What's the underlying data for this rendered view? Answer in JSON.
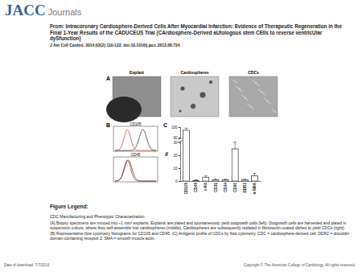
{
  "header": {
    "brand": "JACC",
    "brand_sub": "Journals",
    "title": "From: Intracoronary Cardiosphere-Derived Cells After Myocardial Infarction: Evidence of Therapeutic Regeneration in the Final 1-Year Results of the CADUCEUS Trial (CArdiosphere-Derived aUtologous stem CElls to reverse ventricUlar dySfunction)",
    "citation": "J Am Coll Cardiol. 2014;63(2):110-122. doi:10.1016/j.jacc.2013.08.724"
  },
  "figure": {
    "panels": [
      {
        "letter": "A",
        "images": [
          "Explant",
          "Cardiospheres",
          "CDCs"
        ]
      },
      {
        "letter": "B",
        "histograms": [
          "CD105",
          "CD45"
        ]
      },
      {
        "letter": "C"
      }
    ]
  },
  "chart_data": {
    "type": "bar",
    "categories": [
      "CD105",
      "CD45",
      "c-Kit",
      "CD31",
      "CD34",
      "CD90",
      "DDR2",
      "α-SMA"
    ],
    "values": [
      97,
      0.5,
      3,
      1,
      1,
      25,
      1,
      4
    ],
    "errors": [
      2,
      0.5,
      1,
      0.5,
      0.5,
      8,
      0.5,
      2
    ],
    "color": "#ffffff",
    "ylabel": "%",
    "ylim": [
      0,
      100
    ],
    "yticks": [
      0,
      10,
      20,
      30,
      90,
      100
    ],
    "grid": false
  },
  "legend": {
    "heading": "Figure Legend:",
    "title": "CDC Manufacturing and Phenotypic Characterization",
    "text": "(A) Biopsy specimens are minced into ~1 mm³ explants. Explants are plated and spontaneously yield outgrowth cells (left). Outgrowth cells are harvested and plated in suspension culture, where they self-assemble into cardiospheres (middle). Cardiospheres are subsequently replated in fibronectin-coated dishes to yield CDCs (right). (B) Representative flow cytometry histograms for CD105 and CD45. (C) Antigenic profile of CDCs by flow cytometry. CDC = cardiosphere-derived cell; DDR2 = discoidin domain-containing receptor 2; SMA = smooth muscle actin."
  },
  "footer": {
    "date": "Date of download:  7/7/2016",
    "copyright": "Copyright © The American College of Cardiology. All rights reserved."
  }
}
